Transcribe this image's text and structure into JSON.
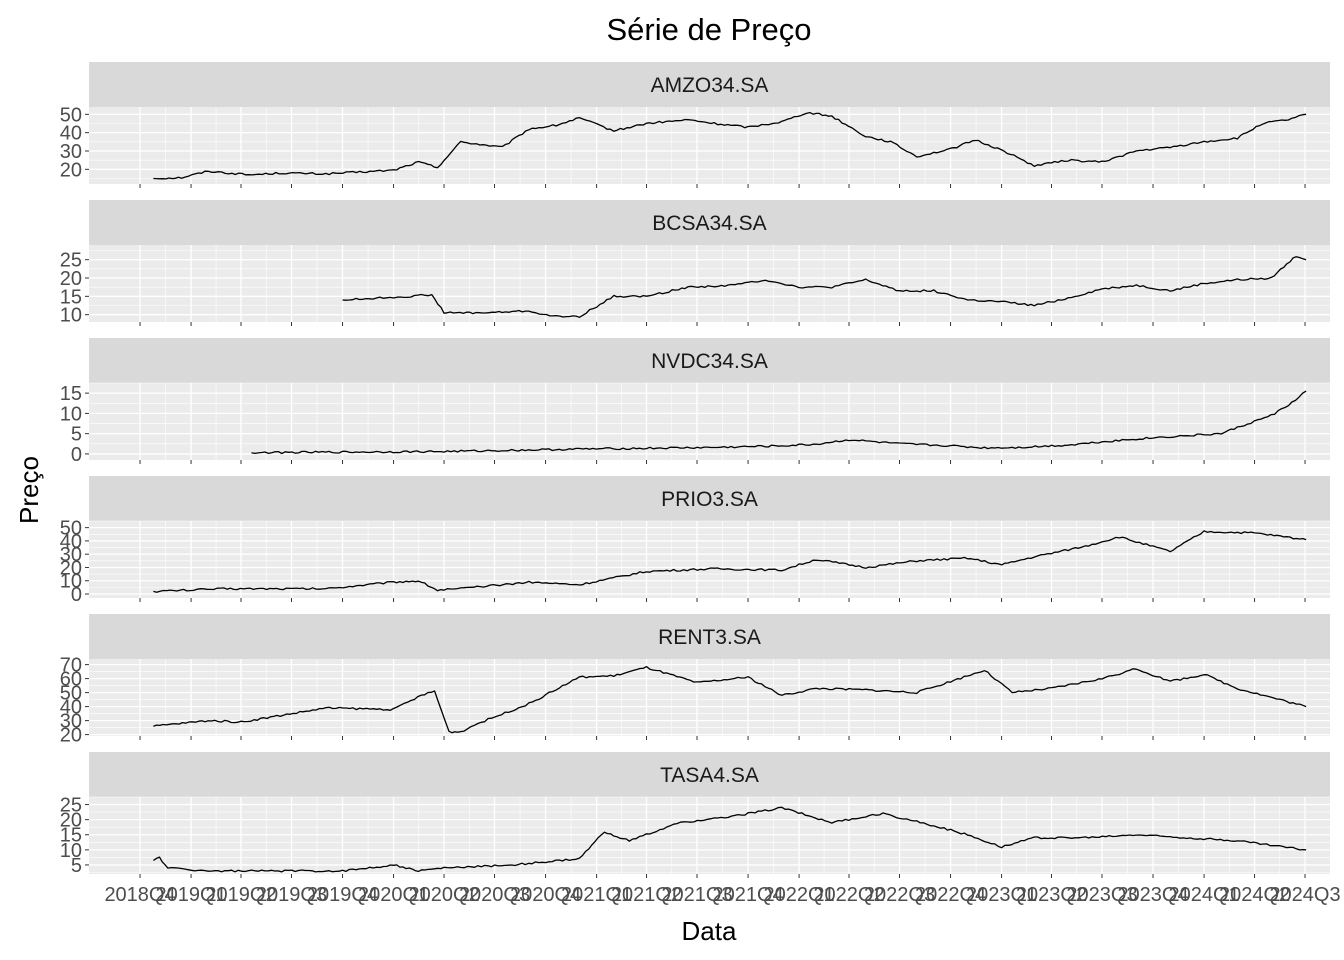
{
  "chart_data": {
    "type": "line",
    "title": "Série de Preço",
    "xlabel": "Data",
    "ylabel": "Preço",
    "grid": true,
    "legend": "none",
    "x_tick_labels": [
      "2018Q4",
      "2019Q1",
      "2019Q2",
      "2019Q3",
      "2019Q4",
      "2020Q1",
      "2020Q2",
      "2020Q3",
      "2020Q4",
      "2021Q1",
      "2021Q2",
      "2021Q3",
      "2021Q4",
      "2022Q1",
      "2022Q2",
      "2022Q3",
      "2022Q4",
      "2023Q1",
      "2023Q2",
      "2023Q3",
      "2023Q4",
      "2024Q1",
      "2024Q2",
      "2024Q3"
    ],
    "colors": {
      "line": "#000000",
      "panel_bg": "#ebebeb",
      "strip_bg": "#d9d9d9",
      "grid": "#ffffff",
      "tick_text": "#4d4d4d"
    },
    "xlim": [
      "2018-07-01",
      "2024-08-15"
    ],
    "panels": [
      {
        "label": "AMZO34.SA",
        "ylim": [
          12,
          54
        ],
        "yticks": [
          20,
          30,
          40,
          50
        ],
        "x": [
          "2018-10-25",
          "2018-12-15",
          "2019-02-01",
          "2019-04-15",
          "2019-06-15",
          "2019-09-01",
          "2019-11-01",
          "2020-01-01",
          "2020-02-15",
          "2020-03-20",
          "2020-05-01",
          "2020-07-15",
          "2020-09-01",
          "2020-10-20",
          "2020-12-01",
          "2021-02-01",
          "2021-04-01",
          "2021-06-15",
          "2021-08-01",
          "2021-10-01",
          "2021-12-01",
          "2022-01-15",
          "2022-03-01",
          "2022-05-01",
          "2022-06-15",
          "2022-08-01",
          "2022-10-01",
          "2022-11-15",
          "2023-01-05",
          "2023-03-01",
          "2023-05-01",
          "2023-07-01",
          "2023-09-01",
          "2023-11-01",
          "2024-01-01",
          "2024-03-01",
          "2024-04-15",
          "2024-06-01",
          "2024-07-03"
        ],
        "values": [
          15,
          15.5,
          19,
          17,
          18,
          17.5,
          18.5,
          19.5,
          24,
          21,
          35,
          32,
          42,
          44,
          48,
          41,
          45,
          47,
          45,
          43,
          46,
          51,
          49,
          38,
          35,
          27,
          31,
          36,
          30,
          22,
          25,
          24,
          30,
          32,
          35,
          37,
          45,
          47,
          50
        ]
      },
      {
        "label": "BCSA34.SA",
        "ylim": [
          8,
          29
        ],
        "yticks": [
          10,
          15,
          20,
          25
        ],
        "x": [
          "2019-10-01",
          "2019-12-01",
          "2020-02-01",
          "2020-03-10",
          "2020-04-01",
          "2020-06-15",
          "2020-09-01",
          "2020-10-15",
          "2020-12-01",
          "2021-02-01",
          "2021-04-01",
          "2021-06-15",
          "2021-09-01",
          "2021-11-01",
          "2022-01-01",
          "2022-03-01",
          "2022-05-01",
          "2022-07-01",
          "2022-09-01",
          "2022-11-01",
          "2023-01-01",
          "2023-03-01",
          "2023-05-01",
          "2023-07-01",
          "2023-09-01",
          "2023-11-01",
          "2024-01-01",
          "2024-03-01",
          "2024-05-01",
          "2024-06-15",
          "2024-07-03"
        ],
        "values": [
          14,
          14.5,
          15,
          15.5,
          10.5,
          10.5,
          11,
          9.5,
          9.5,
          15,
          15,
          17.5,
          18,
          19.5,
          17.5,
          17.5,
          19.5,
          16.5,
          16.5,
          14,
          13.5,
          12.5,
          14.5,
          17,
          18,
          16.5,
          18.5,
          19.5,
          20,
          26,
          25
        ]
      },
      {
        "label": "NVDC34.SA",
        "ylim": [
          -1.5,
          17.5
        ],
        "yticks": [
          0,
          5,
          10,
          15
        ],
        "x": [
          "2019-04-20",
          "2019-08-01",
          "2019-12-01",
          "2020-04-01",
          "2020-08-01",
          "2020-12-01",
          "2021-04-01",
          "2021-08-01",
          "2021-12-01",
          "2022-02-01",
          "2022-04-01",
          "2022-07-01",
          "2022-10-01",
          "2022-12-01",
          "2023-02-01",
          "2023-05-01",
          "2023-07-01",
          "2023-10-01",
          "2023-12-01",
          "2024-02-01",
          "2024-03-01",
          "2024-05-01",
          "2024-06-01",
          "2024-07-03"
        ],
        "values": [
          0.3,
          0.4,
          0.5,
          0.6,
          0.9,
          1.2,
          1.4,
          1.6,
          2,
          2.4,
          3.5,
          2.5,
          2,
          1.5,
          1.6,
          2.2,
          3,
          4,
          4.5,
          5,
          6.5,
          9.5,
          12,
          15.5
        ]
      },
      {
        "label": "PRIO3.SA",
        "ylim": [
          -3,
          55
        ],
        "yticks": [
          0,
          10,
          20,
          30,
          40,
          50
        ],
        "x": [
          "2018-10-25",
          "2019-03-01",
          "2019-09-01",
          "2020-01-01",
          "2020-02-15",
          "2020-03-20",
          "2020-05-01",
          "2020-09-01",
          "2020-12-01",
          "2021-04-01",
          "2021-08-01",
          "2021-12-01",
          "2022-02-01",
          "2022-05-01",
          "2022-08-01",
          "2022-11-01",
          "2023-01-01",
          "2023-03-01",
          "2023-06-01",
          "2023-08-01",
          "2023-11-01",
          "2024-01-01",
          "2024-04-01",
          "2024-07-03"
        ],
        "values": [
          2,
          4,
          4,
          9,
          10,
          3,
          4,
          9,
          7,
          17,
          19,
          18,
          26,
          20,
          25,
          27,
          22,
          28,
          36,
          43,
          32,
          47,
          46,
          41
        ]
      },
      {
        "label": "RENT3.SA",
        "ylim": [
          19,
          74
        ],
        "yticks": [
          20,
          30,
          40,
          50,
          60,
          70
        ],
        "x": [
          "2018-10-25",
          "2019-02-01",
          "2019-04-01",
          "2019-09-01",
          "2020-01-01",
          "2020-02-20",
          "2020-03-15",
          "2020-04-10",
          "2020-05-01",
          "2020-06-01",
          "2020-09-01",
          "2020-12-01",
          "2021-02-01",
          "2021-04-01",
          "2021-07-01",
          "2021-10-01",
          "2021-12-01",
          "2022-02-01",
          "2022-05-01",
          "2022-08-01",
          "2022-10-01",
          "2022-12-01",
          "2023-01-20",
          "2023-04-01",
          "2023-07-01",
          "2023-09-01",
          "2023-11-01",
          "2024-01-01",
          "2024-03-01",
          "2024-07-03"
        ],
        "values": [
          26,
          30,
          29,
          39,
          38,
          48,
          51,
          22,
          22,
          28,
          42,
          61,
          62,
          68,
          57,
          61,
          48,
          53,
          52,
          50,
          58,
          66,
          50,
          53,
          60,
          67,
          58,
          63,
          53,
          40
        ]
      },
      {
        "label": "TASA4.SA",
        "ylim": [
          2,
          27.5
        ],
        "yticks": [
          5,
          10,
          15,
          20,
          25
        ],
        "x": [
          "2018-10-25",
          "2018-11-05",
          "2018-11-20",
          "2019-02-01",
          "2019-06-01",
          "2019-10-01",
          "2020-01-01",
          "2020-02-15",
          "2020-04-01",
          "2020-08-01",
          "2020-12-01",
          "2021-01-15",
          "2021-03-01",
          "2021-06-01",
          "2021-09-01",
          "2021-12-01",
          "2022-03-01",
          "2022-06-01",
          "2022-09-01",
          "2022-11-01",
          "2023-01-01",
          "2023-03-01",
          "2023-06-01",
          "2023-09-01",
          "2023-12-01",
          "2024-03-01",
          "2024-07-03"
        ],
        "values": [
          6.5,
          7.5,
          4,
          3,
          3,
          3,
          5,
          3,
          4,
          5,
          7,
          16,
          13,
          19,
          21,
          24,
          19,
          22,
          18,
          15,
          11,
          14,
          14,
          15,
          14,
          13,
          10
        ]
      }
    ]
  }
}
